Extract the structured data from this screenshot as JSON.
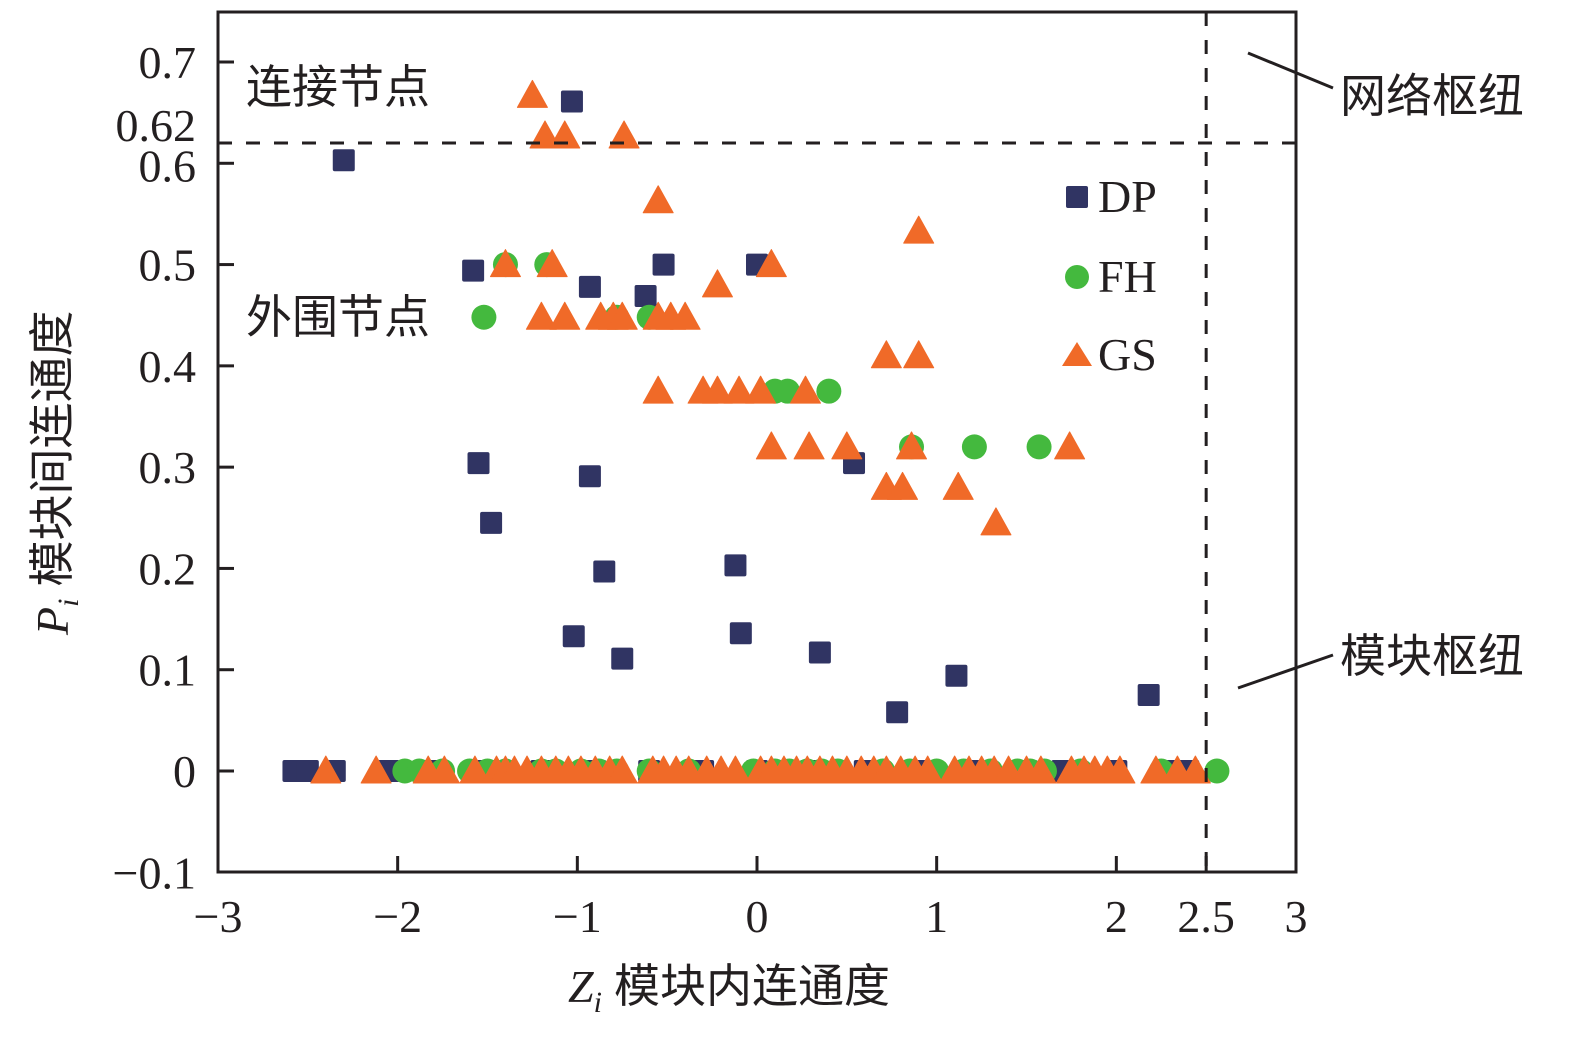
{
  "chart_data": {
    "type": "scatter",
    "title": "",
    "xlabel": "Z_i 模块内连通度",
    "xlabel_symbol": "Z",
    "xlabel_sub": "i",
    "xlabel_text": "模块内连通度",
    "ylabel": "P_i 模块间连通度",
    "ylabel_symbol": "P",
    "ylabel_sub": "i",
    "ylabel_text": "模块间连通度",
    "xlim": [
      -3,
      3
    ],
    "ylim": [
      -0.1,
      0.75
    ],
    "x_ticks": [
      -3,
      -2,
      -1,
      0,
      1,
      2,
      2.5,
      3
    ],
    "x_tick_labels": [
      "−3",
      "−2",
      "−1",
      "0",
      "1",
      "2",
      "2.5",
      "3"
    ],
    "y_ticks": [
      -0.1,
      0,
      0.1,
      0.2,
      0.3,
      0.4,
      0.5,
      0.6,
      0.62,
      0.7
    ],
    "y_tick_labels": [
      "−0.1",
      "0",
      "0.1",
      "0.2",
      "0.3",
      "0.4",
      "0.5",
      "0.6",
      "0.62",
      "0.7"
    ],
    "grid": false,
    "legend_position": "top-right",
    "thresholds": {
      "x": 2.5,
      "y": 0.62
    },
    "annotations": {
      "connector_nodes": "连接节点",
      "peripheral_nodes": "外围节点",
      "network_hubs": "网络枢纽",
      "module_hubs": "模块枢纽"
    },
    "series": [
      {
        "name": "DP",
        "marker": "square",
        "color": "#303463",
        "points": [
          [
            -2.3,
            0.603
          ],
          [
            -1.03,
            0.661
          ],
          [
            -1.58,
            0.494
          ],
          [
            -0.93,
            0.478
          ],
          [
            -0.52,
            0.5
          ],
          [
            -0.62,
            0.469
          ],
          [
            0.0,
            0.5
          ],
          [
            -1.55,
            0.304
          ],
          [
            -1.48,
            0.245
          ],
          [
            -0.93,
            0.291
          ],
          [
            -0.85,
            0.197
          ],
          [
            -0.12,
            0.203
          ],
          [
            -1.02,
            0.133
          ],
          [
            -0.75,
            0.111
          ],
          [
            -0.09,
            0.136
          ],
          [
            0.35,
            0.117
          ],
          [
            0.54,
            0.304
          ],
          [
            0.78,
            0.058
          ],
          [
            1.11,
            0.094
          ],
          [
            2.18,
            0.075
          ],
          [
            -2.58,
            0
          ],
          [
            -2.5,
            0
          ],
          [
            -2.35,
            0
          ],
          [
            -2.05,
            0
          ],
          [
            -1.8,
            0
          ],
          [
            -1.5,
            0
          ],
          [
            -1.2,
            0
          ],
          [
            -0.9,
            0
          ],
          [
            -0.6,
            0
          ],
          [
            -0.3,
            0
          ],
          [
            0.0,
            0
          ],
          [
            0.3,
            0
          ],
          [
            0.6,
            0
          ],
          [
            0.9,
            0
          ],
          [
            1.2,
            0
          ],
          [
            1.5,
            0
          ],
          [
            1.7,
            0
          ],
          [
            2.0,
            0
          ],
          [
            2.3,
            0
          ],
          [
            2.4,
            0
          ]
        ]
      },
      {
        "name": "FH",
        "marker": "circle",
        "color": "#44B93E",
        "points": [
          [
            -1.52,
            0.448
          ],
          [
            -1.4,
            0.5
          ],
          [
            -1.17,
            0.5
          ],
          [
            -0.78,
            0.448
          ],
          [
            -0.6,
            0.448
          ],
          [
            0.1,
            0.375
          ],
          [
            0.17,
            0.375
          ],
          [
            0.4,
            0.375
          ],
          [
            0.86,
            0.32
          ],
          [
            1.21,
            0.32
          ],
          [
            1.57,
            0.32
          ],
          [
            -1.96,
            0
          ],
          [
            -1.88,
            0
          ],
          [
            -1.75,
            0
          ],
          [
            -1.6,
            0
          ],
          [
            -1.5,
            0
          ],
          [
            -1.4,
            0
          ],
          [
            -1.2,
            0
          ],
          [
            -1.12,
            0
          ],
          [
            -0.98,
            0
          ],
          [
            -0.88,
            0
          ],
          [
            -0.78,
            0
          ],
          [
            -0.6,
            0
          ],
          [
            -0.38,
            0
          ],
          [
            -0.02,
            0
          ],
          [
            0.1,
            0
          ],
          [
            0.18,
            0
          ],
          [
            0.28,
            0
          ],
          [
            0.36,
            0
          ],
          [
            0.45,
            0
          ],
          [
            0.7,
            0
          ],
          [
            0.85,
            0
          ],
          [
            1.0,
            0
          ],
          [
            1.15,
            0
          ],
          [
            1.3,
            0
          ],
          [
            1.45,
            0
          ],
          [
            1.52,
            0
          ],
          [
            1.6,
            0
          ],
          [
            1.8,
            0
          ],
          [
            2.25,
            0
          ],
          [
            2.56,
            0
          ]
        ]
      },
      {
        "name": "GS",
        "marker": "triangle",
        "color": "#F06A28",
        "points": [
          [
            -1.25,
            0.667
          ],
          [
            -1.18,
            0.627
          ],
          [
            -1.07,
            0.627
          ],
          [
            -0.74,
            0.627
          ],
          [
            -0.55,
            0.563
          ],
          [
            -1.4,
            0.5
          ],
          [
            -1.14,
            0.5
          ],
          [
            0.08,
            0.5
          ],
          [
            0.9,
            0.533
          ],
          [
            -0.22,
            0.48
          ],
          [
            -1.2,
            0.448
          ],
          [
            -1.07,
            0.448
          ],
          [
            -0.87,
            0.448
          ],
          [
            -0.8,
            0.448
          ],
          [
            -0.75,
            0.448
          ],
          [
            -0.55,
            0.448
          ],
          [
            -0.48,
            0.448
          ],
          [
            -0.4,
            0.448
          ],
          [
            -0.55,
            0.375
          ],
          [
            -0.3,
            0.375
          ],
          [
            -0.22,
            0.375
          ],
          [
            -0.1,
            0.375
          ],
          [
            0.02,
            0.375
          ],
          [
            0.27,
            0.375
          ],
          [
            0.72,
            0.41
          ],
          [
            0.9,
            0.41
          ],
          [
            0.08,
            0.32
          ],
          [
            0.29,
            0.32
          ],
          [
            0.5,
            0.32
          ],
          [
            0.86,
            0.32
          ],
          [
            1.74,
            0.32
          ],
          [
            0.72,
            0.28
          ],
          [
            0.81,
            0.28
          ],
          [
            1.12,
            0.28
          ],
          [
            1.33,
            0.245
          ],
          [
            -2.4,
            0
          ],
          [
            -2.12,
            0
          ],
          [
            -1.83,
            0
          ],
          [
            -1.74,
            0
          ],
          [
            -1.57,
            0
          ],
          [
            -1.45,
            0
          ],
          [
            -1.4,
            0
          ],
          [
            -1.35,
            0
          ],
          [
            -1.28,
            0
          ],
          [
            -1.2,
            0
          ],
          [
            -1.12,
            0
          ],
          [
            -1.05,
            0
          ],
          [
            -0.98,
            0
          ],
          [
            -0.9,
            0
          ],
          [
            -0.82,
            0
          ],
          [
            -0.75,
            0
          ],
          [
            -0.58,
            0
          ],
          [
            -0.52,
            0
          ],
          [
            -0.45,
            0
          ],
          [
            -0.38,
            0
          ],
          [
            -0.28,
            0
          ],
          [
            -0.2,
            0
          ],
          [
            -0.12,
            0
          ],
          [
            0.02,
            0
          ],
          [
            0.08,
            0
          ],
          [
            0.15,
            0
          ],
          [
            0.22,
            0
          ],
          [
            0.28,
            0
          ],
          [
            0.35,
            0
          ],
          [
            0.42,
            0
          ],
          [
            0.5,
            0
          ],
          [
            0.58,
            0
          ],
          [
            0.65,
            0
          ],
          [
            0.72,
            0
          ],
          [
            0.8,
            0
          ],
          [
            0.88,
            0
          ],
          [
            0.95,
            0
          ],
          [
            1.1,
            0
          ],
          [
            1.18,
            0
          ],
          [
            1.25,
            0
          ],
          [
            1.32,
            0
          ],
          [
            1.4,
            0
          ],
          [
            1.5,
            0
          ],
          [
            1.58,
            0
          ],
          [
            1.75,
            0
          ],
          [
            1.82,
            0
          ],
          [
            1.88,
            0
          ],
          [
            1.95,
            0
          ],
          [
            2.02,
            0
          ],
          [
            2.22,
            0
          ],
          [
            2.34,
            0
          ],
          [
            2.44,
            0
          ]
        ]
      }
    ]
  }
}
